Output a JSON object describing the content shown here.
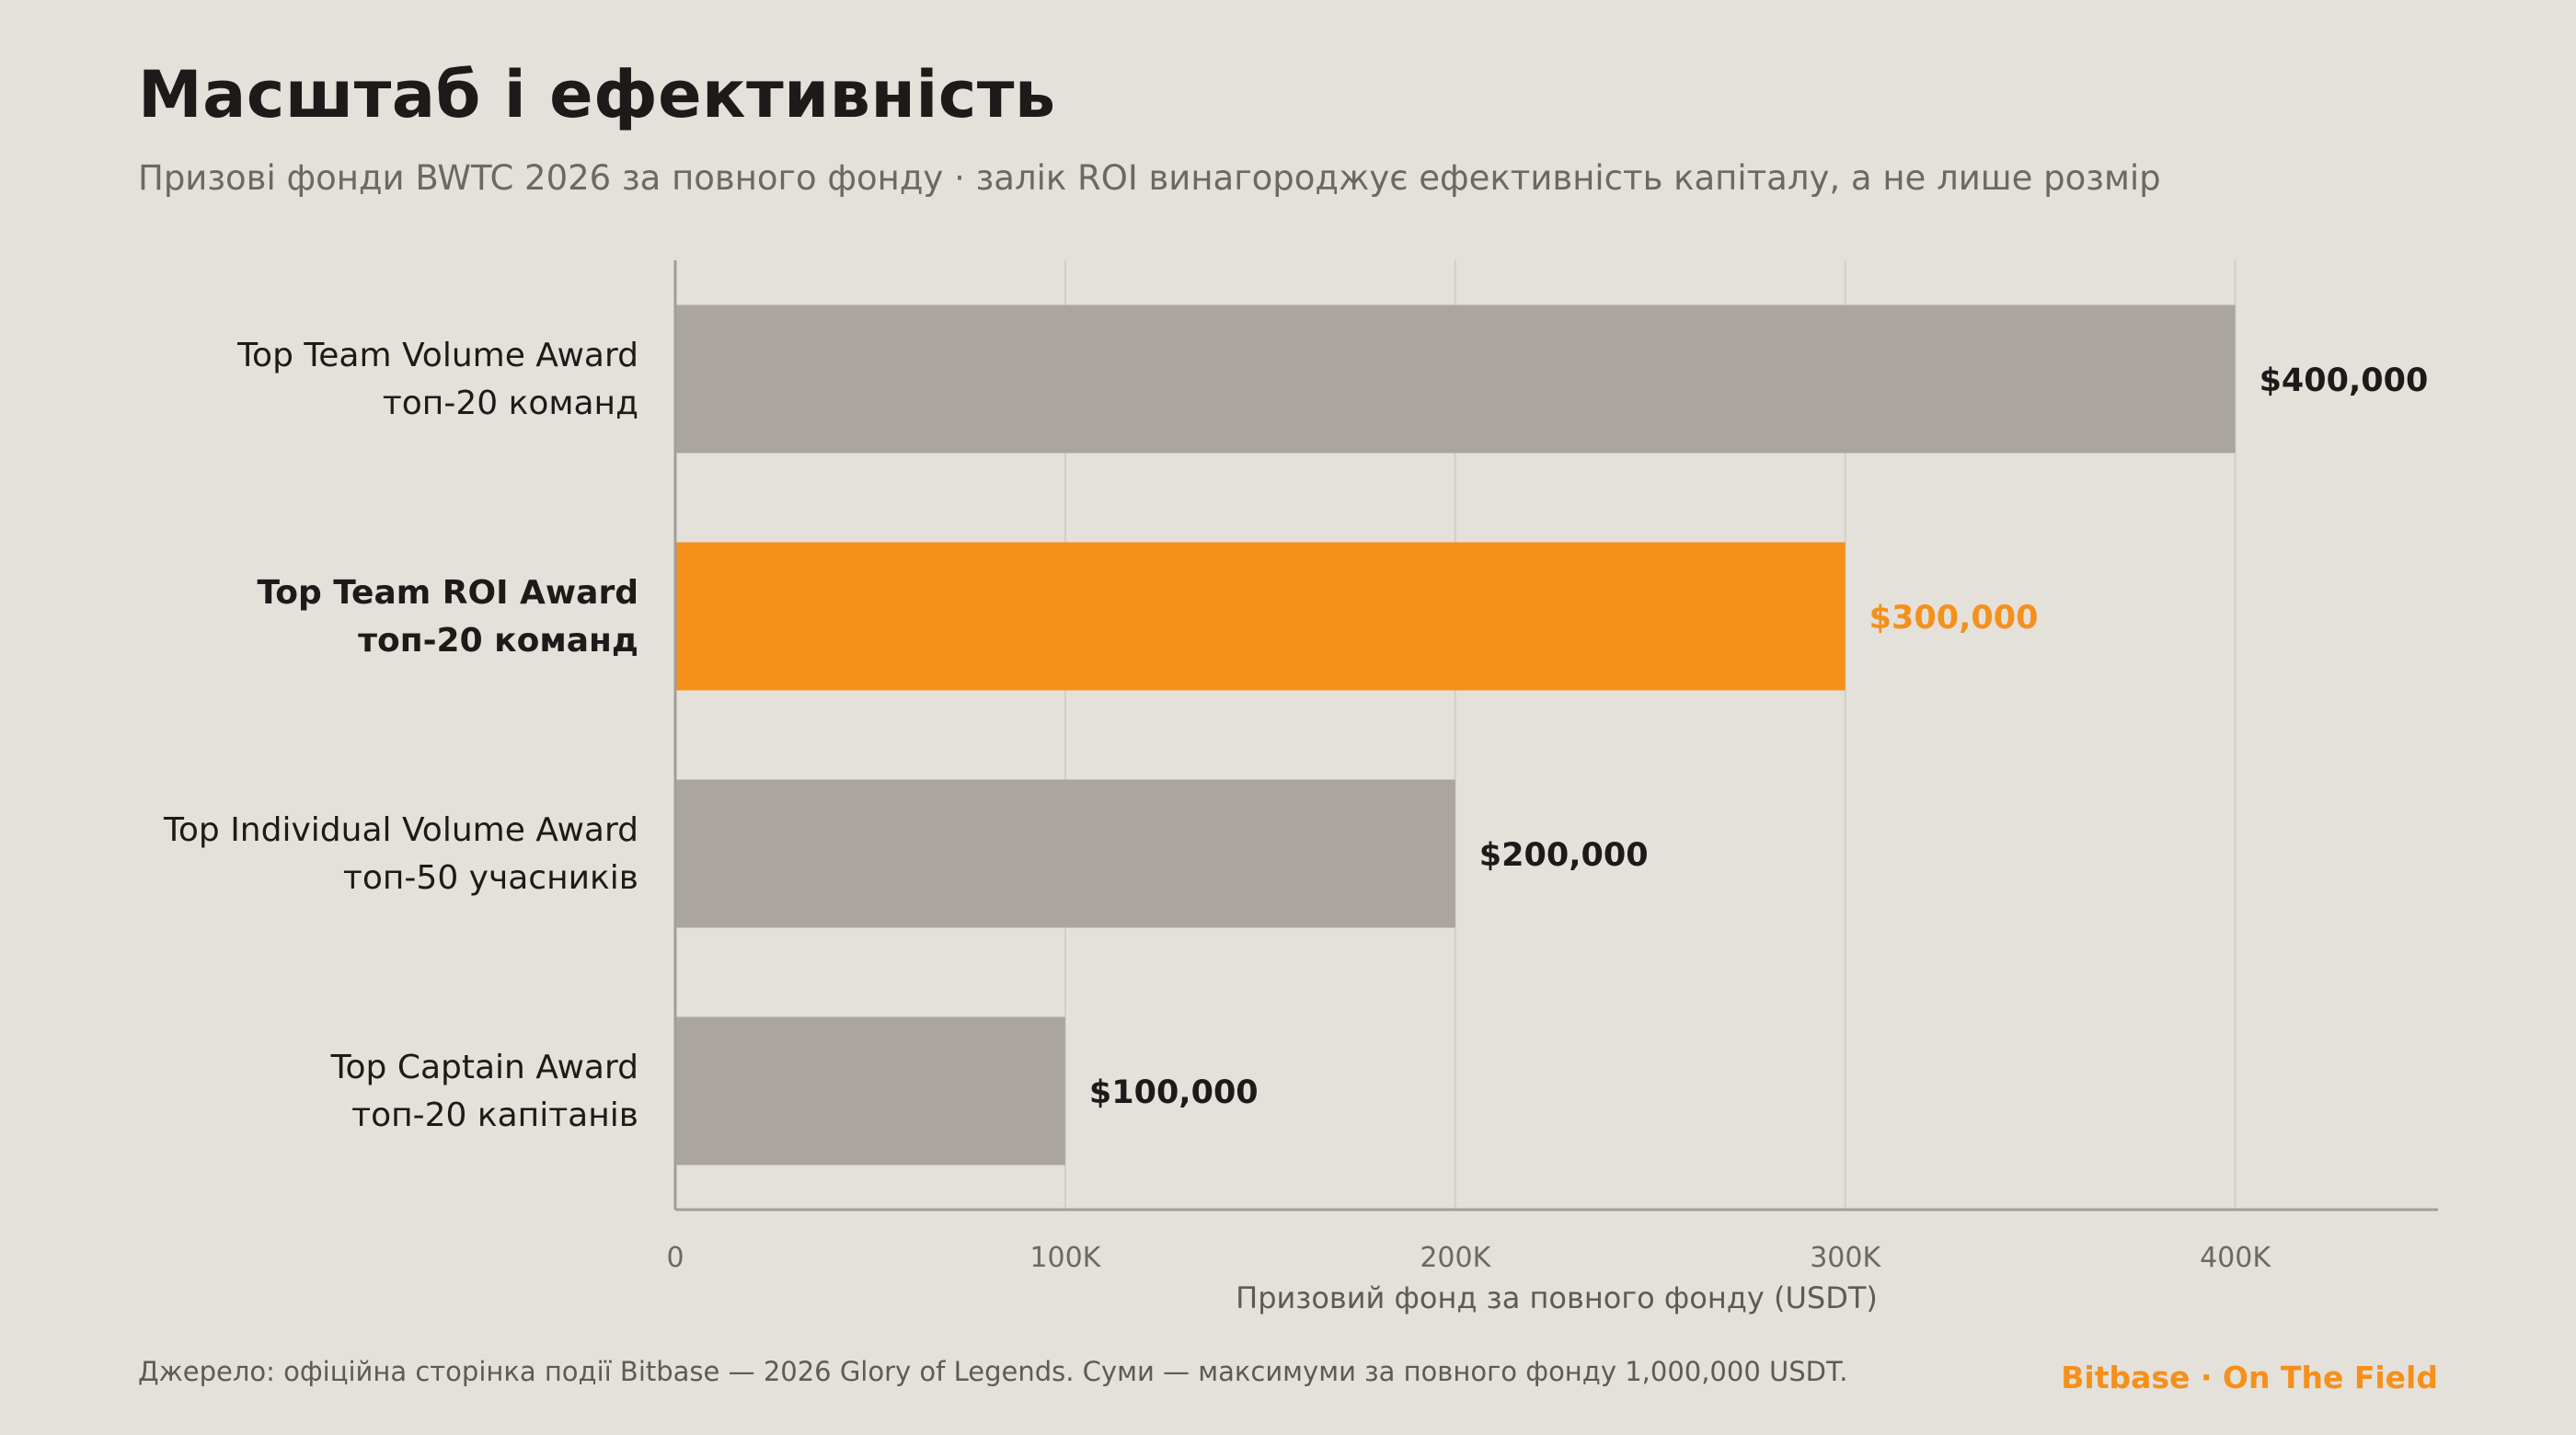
{
  "title": "Масштаб і ефективність",
  "subtitle": "Призові фонди BWTC 2026 за повного фонду · залік ROI винагороджує ефективність капіталу, а не лише розмір",
  "footer": {
    "source": "Джерело: офіційна сторінка події Bitbase — 2026 Glory of Legends. Суми — максимуми за повного фонду 1,000,000 USDT.",
    "brand": "Bitbase · On The Field"
  },
  "colors": {
    "background": "#e4e0da",
    "bar_default": "#aaa59f",
    "bar_highlight": "#f5901a",
    "text_dark": "#1c1b19",
    "grid": "#d3cec8",
    "axis": "#a39e98"
  },
  "chart_data": {
    "type": "bar",
    "orientation": "horizontal",
    "categories": [
      "Top Team Volume Award\nтоп-20 команд",
      "Top Team ROI Award\nтоп-20 команд",
      "Top Individual Volume Award\nтоп-50 учасників",
      "Top Captain Award\nтоп-20 капітанів"
    ],
    "values": [
      400000,
      300000,
      200000,
      100000
    ],
    "value_labels": [
      "$400,000",
      "$300,000",
      "$200,000",
      "$100,000"
    ],
    "highlight_index": 1,
    "xlabel": "Призовий фонд за повного фонду (USDT)",
    "xlim": [
      0,
      452000
    ],
    "xticks": [
      0,
      100000,
      200000,
      300000,
      400000
    ],
    "xtick_labels": [
      "0",
      "100K",
      "200K",
      "300K",
      "400K"
    ],
    "grid": "vertical"
  }
}
